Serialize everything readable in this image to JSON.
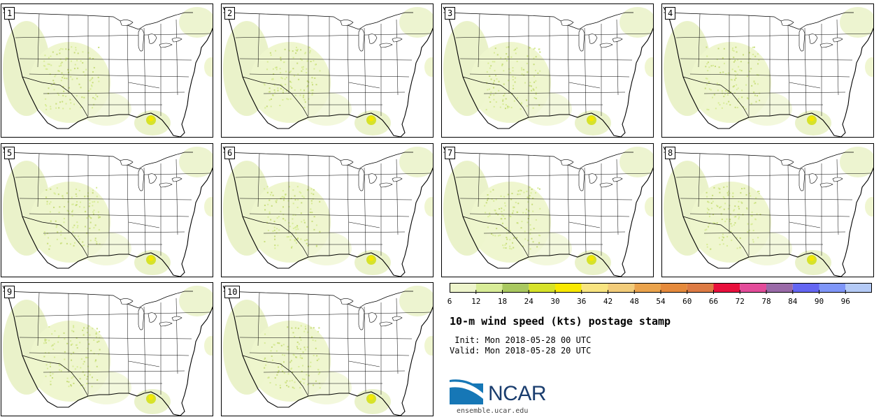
{
  "members": [
    "1",
    "2",
    "3",
    "4",
    "5",
    "6",
    "7",
    "8",
    "9",
    "10"
  ],
  "colorbar": {
    "ticks": [
      "6",
      "12",
      "18",
      "24",
      "30",
      "36",
      "42",
      "48",
      "54",
      "60",
      "66",
      "72",
      "78",
      "84",
      "90",
      "96"
    ],
    "colors": [
      "#eef5cc",
      "#d8ec98",
      "#a9c860",
      "#d6e22a",
      "#f8e800",
      "#f8e480",
      "#f2cc7a",
      "#eaa34c",
      "#e58a3c",
      "#dd7b44",
      "#e8103c",
      "#e34c9a",
      "#9a6aa8",
      "#6466f2",
      "#7f96f8",
      "#b4caf6"
    ]
  },
  "title": "10-m wind speed (kts) postage stamp",
  "init_line": " Init: Mon 2018-05-28 00 UTC",
  "valid_line": "Valid: Mon 2018-05-28 20 UTC",
  "logo": {
    "text": "NCAR",
    "url": "ensemble.ucar.edu"
  }
}
